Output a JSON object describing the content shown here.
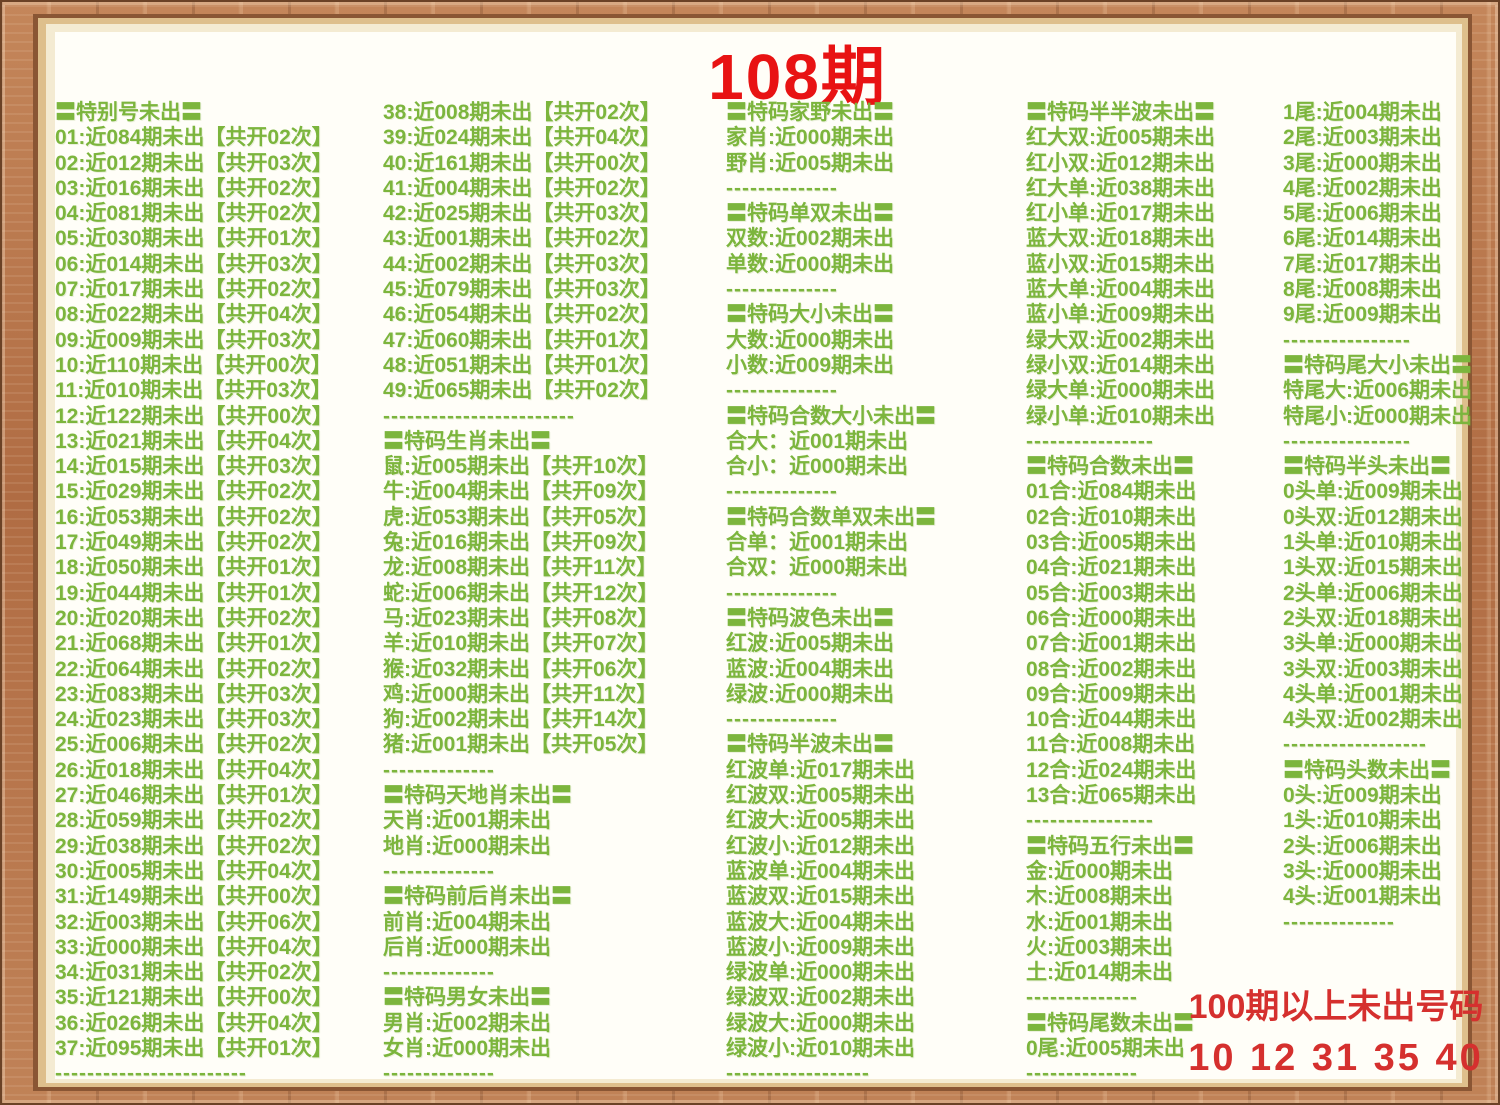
{
  "title": "108期",
  "colors": {
    "text_green": "#7cb53d",
    "title_red": "#e81313",
    "footer_red": "#d5302e"
  },
  "footer": {
    "line1": "100期以上未出号码",
    "line2": "10 12 31 35 40"
  },
  "columns": [
    {
      "name": "special-numbers",
      "lines": [
        {
          "t": "h",
          "text": "〓特别号未出〓"
        },
        {
          "t": "i",
          "text": "01:近084期未出【共开02次】"
        },
        {
          "t": "i",
          "text": "02:近012期未出【共开03次】"
        },
        {
          "t": "i",
          "text": "03:近016期未出【共开02次】"
        },
        {
          "t": "i",
          "text": "04:近081期未出【共开02次】"
        },
        {
          "t": "i",
          "text": "05:近030期未出【共开01次】"
        },
        {
          "t": "i",
          "text": "06:近014期未出【共开03次】"
        },
        {
          "t": "i",
          "text": "07:近017期未出【共开02次】"
        },
        {
          "t": "i",
          "text": "08:近022期未出【共开04次】"
        },
        {
          "t": "i",
          "text": "09:近009期未出【共开03次】"
        },
        {
          "t": "i",
          "text": "10:近110期未出【共开00次】"
        },
        {
          "t": "i",
          "text": "11:近010期未出【共开03次】"
        },
        {
          "t": "i",
          "text": "12:近122期未出【共开00次】"
        },
        {
          "t": "i",
          "text": "13:近021期未出【共开04次】"
        },
        {
          "t": "i",
          "text": "14:近015期未出【共开03次】"
        },
        {
          "t": "i",
          "text": "15:近029期未出【共开02次】"
        },
        {
          "t": "i",
          "text": "16:近053期未出【共开02次】"
        },
        {
          "t": "i",
          "text": "17:近049期未出【共开02次】"
        },
        {
          "t": "i",
          "text": "18:近050期未出【共开01次】"
        },
        {
          "t": "i",
          "text": "19:近044期未出【共开01次】"
        },
        {
          "t": "i",
          "text": "20:近020期未出【共开02次】"
        },
        {
          "t": "i",
          "text": "21:近068期未出【共开01次】"
        },
        {
          "t": "i",
          "text": "22:近064期未出【共开02次】"
        },
        {
          "t": "i",
          "text": "23:近083期未出【共开03次】"
        },
        {
          "t": "i",
          "text": "24:近023期未出【共开03次】"
        },
        {
          "t": "i",
          "text": "25:近006期未出【共开02次】"
        },
        {
          "t": "i",
          "text": "26:近018期未出【共开04次】"
        },
        {
          "t": "i",
          "text": "27:近046期未出【共开01次】"
        },
        {
          "t": "i",
          "text": "28:近059期未出【共开02次】"
        },
        {
          "t": "i",
          "text": "29:近038期未出【共开02次】"
        },
        {
          "t": "i",
          "text": "30:近005期未出【共开04次】"
        },
        {
          "t": "i",
          "text": "31:近149期未出【共开00次】"
        },
        {
          "t": "i",
          "text": "32:近003期未出【共开06次】"
        },
        {
          "t": "i",
          "text": "33:近000期未出【共开04次】"
        },
        {
          "t": "i",
          "text": "34:近031期未出【共开02次】"
        },
        {
          "t": "i",
          "text": "35:近121期未出【共开00次】"
        },
        {
          "t": "i",
          "text": "36:近026期未出【共开04次】"
        },
        {
          "t": "i",
          "text": "37:近095期未出【共开01次】"
        },
        {
          "t": "d",
          "text": "------------------------"
        }
      ]
    },
    {
      "name": "special-numbers-2-and-zodiac",
      "lines": [
        {
          "t": "i",
          "text": "38:近008期未出【共开02次】"
        },
        {
          "t": "i",
          "text": "39:近024期未出【共开04次】"
        },
        {
          "t": "i",
          "text": "40:近161期未出【共开00次】"
        },
        {
          "t": "i",
          "text": "41:近004期未出【共开02次】"
        },
        {
          "t": "i",
          "text": "42:近025期未出【共开03次】"
        },
        {
          "t": "i",
          "text": "43:近001期未出【共开02次】"
        },
        {
          "t": "i",
          "text": "44:近002期未出【共开03次】"
        },
        {
          "t": "i",
          "text": "45:近079期未出【共开03次】"
        },
        {
          "t": "i",
          "text": "46:近054期未出【共开02次】"
        },
        {
          "t": "i",
          "text": "47:近060期未出【共开01次】"
        },
        {
          "t": "i",
          "text": "48:近051期未出【共开01次】"
        },
        {
          "t": "i",
          "text": "49:近065期未出【共开02次】"
        },
        {
          "t": "d",
          "text": "------------------------"
        },
        {
          "t": "h",
          "text": "〓特码生肖未出〓"
        },
        {
          "t": "i",
          "text": "鼠:近005期未出【共开10次】"
        },
        {
          "t": "i",
          "text": "牛:近004期未出【共开09次】"
        },
        {
          "t": "i",
          "text": "虎:近053期未出【共开05次】"
        },
        {
          "t": "i",
          "text": "兔:近016期未出【共开09次】"
        },
        {
          "t": "i",
          "text": "龙:近008期未出【共开11次】"
        },
        {
          "t": "i",
          "text": "蛇:近006期未出【共开12次】"
        },
        {
          "t": "i",
          "text": "马:近023期未出【共开08次】"
        },
        {
          "t": "i",
          "text": "羊:近010期未出【共开07次】"
        },
        {
          "t": "i",
          "text": "猴:近032期未出【共开06次】"
        },
        {
          "t": "i",
          "text": "鸡:近000期未出【共开11次】"
        },
        {
          "t": "i",
          "text": "狗:近002期未出【共开14次】"
        },
        {
          "t": "i",
          "text": "猪:近001期未出【共开05次】"
        },
        {
          "t": "d",
          "text": "--------------"
        },
        {
          "t": "h",
          "text": "〓特码天地肖未出〓"
        },
        {
          "t": "i",
          "text": "天肖:近001期未出"
        },
        {
          "t": "i",
          "text": "地肖:近000期未出"
        },
        {
          "t": "d",
          "text": "--------------"
        },
        {
          "t": "h",
          "text": "〓特码前后肖未出〓"
        },
        {
          "t": "i",
          "text": "前肖:近004期未出"
        },
        {
          "t": "i",
          "text": "后肖:近000期未出"
        },
        {
          "t": "d",
          "text": "--------------"
        },
        {
          "t": "h",
          "text": "〓特码男女未出〓"
        },
        {
          "t": "i",
          "text": "男肖:近002期未出"
        },
        {
          "t": "i",
          "text": "女肖:近000期未出"
        },
        {
          "t": "d",
          "text": "--------------"
        }
      ]
    },
    {
      "name": "attributes",
      "lines": [
        {
          "t": "h",
          "text": "〓特码家野未出〓"
        },
        {
          "t": "i",
          "text": "家肖:近000期未出"
        },
        {
          "t": "i",
          "text": "野肖:近005期未出"
        },
        {
          "t": "d",
          "text": "--------------"
        },
        {
          "t": "h",
          "text": "〓特码单双未出〓"
        },
        {
          "t": "i",
          "text": "双数:近002期未出"
        },
        {
          "t": "i",
          "text": "单数:近000期未出"
        },
        {
          "t": "d",
          "text": "--------------"
        },
        {
          "t": "h",
          "text": "〓特码大小未出〓"
        },
        {
          "t": "i",
          "text": "大数:近000期未出"
        },
        {
          "t": "i",
          "text": "小数:近009期未出"
        },
        {
          "t": "d",
          "text": "--------------"
        },
        {
          "t": "h",
          "text": "〓特码合数大小未出〓"
        },
        {
          "t": "i",
          "text": "合大：近001期未出"
        },
        {
          "t": "i",
          "text": "合小：近000期未出"
        },
        {
          "t": "d",
          "text": "--------------"
        },
        {
          "t": "h",
          "text": "〓特码合数单双未出〓"
        },
        {
          "t": "i",
          "text": "合单：近001期未出"
        },
        {
          "t": "i",
          "text": "合双：近000期未出"
        },
        {
          "t": "d",
          "text": "--------------"
        },
        {
          "t": "h",
          "text": "〓特码波色未出〓"
        },
        {
          "t": "i",
          "text": "红波:近005期未出"
        },
        {
          "t": "i",
          "text": "蓝波:近004期未出"
        },
        {
          "t": "i",
          "text": "绿波:近000期未出"
        },
        {
          "t": "d",
          "text": "--------------"
        },
        {
          "t": "h",
          "text": "〓特码半波未出〓"
        },
        {
          "t": "i",
          "text": "红波单:近017期未出"
        },
        {
          "t": "i",
          "text": "红波双:近005期未出"
        },
        {
          "t": "i",
          "text": "红波大:近005期未出"
        },
        {
          "t": "i",
          "text": "红波小:近012期未出"
        },
        {
          "t": "i",
          "text": "蓝波单:近004期未出"
        },
        {
          "t": "i",
          "text": "蓝波双:近015期未出"
        },
        {
          "t": "i",
          "text": "蓝波大:近004期未出"
        },
        {
          "t": "i",
          "text": "蓝波小:近009期未出"
        },
        {
          "t": "i",
          "text": "绿波单:近000期未出"
        },
        {
          "t": "i",
          "text": "绿波双:近002期未出"
        },
        {
          "t": "i",
          "text": "绿波大:近000期未出"
        },
        {
          "t": "i",
          "text": "绿波小:近010期未出"
        },
        {
          "t": "d",
          "text": "------------------"
        }
      ]
    },
    {
      "name": "half-half-wave-and-sums",
      "lines": [
        {
          "t": "h",
          "text": "〓特码半半波未出〓"
        },
        {
          "t": "i",
          "text": "红大双:近005期未出"
        },
        {
          "t": "i",
          "text": "红小双:近012期未出"
        },
        {
          "t": "i",
          "text": "红大单:近038期未出"
        },
        {
          "t": "i",
          "text": "红小单:近017期未出"
        },
        {
          "t": "i",
          "text": "蓝大双:近018期未出"
        },
        {
          "t": "i",
          "text": "蓝小双:近015期未出"
        },
        {
          "t": "i",
          "text": "蓝大单:近004期未出"
        },
        {
          "t": "i",
          "text": "蓝小单:近009期未出"
        },
        {
          "t": "i",
          "text": "绿大双:近002期未出"
        },
        {
          "t": "i",
          "text": "绿小双:近014期未出"
        },
        {
          "t": "i",
          "text": "绿大单:近000期未出"
        },
        {
          "t": "i",
          "text": "绿小单:近010期未出"
        },
        {
          "t": "d",
          "text": "----------------"
        },
        {
          "t": "h",
          "text": "〓特码合数未出〓"
        },
        {
          "t": "i",
          "text": "01合:近084期未出"
        },
        {
          "t": "i",
          "text": "02合:近010期未出"
        },
        {
          "t": "i",
          "text": "03合:近005期未出"
        },
        {
          "t": "i",
          "text": "04合:近021期未出"
        },
        {
          "t": "i",
          "text": "05合:近003期未出"
        },
        {
          "t": "i",
          "text": "06合:近000期未出"
        },
        {
          "t": "i",
          "text": "07合:近001期未出"
        },
        {
          "t": "i",
          "text": "08合:近002期未出"
        },
        {
          "t": "i",
          "text": "09合:近009期未出"
        },
        {
          "t": "i",
          "text": "10合:近044期未出"
        },
        {
          "t": "i",
          "text": "11合:近008期未出"
        },
        {
          "t": "i",
          "text": "12合:近024期未出"
        },
        {
          "t": "i",
          "text": "13合:近065期未出"
        },
        {
          "t": "d",
          "text": "----------------"
        },
        {
          "t": "h",
          "text": "〓特码五行未出〓"
        },
        {
          "t": "i",
          "text": "金:近000期未出"
        },
        {
          "t": "i",
          "text": "木:近008期未出"
        },
        {
          "t": "i",
          "text": "水:近001期未出"
        },
        {
          "t": "i",
          "text": "火:近003期未出"
        },
        {
          "t": "i",
          "text": "土:近014期未出"
        },
        {
          "t": "d",
          "text": "--------------"
        },
        {
          "t": "h",
          "text": "〓特码尾数未出〓"
        },
        {
          "t": "i",
          "text": "0尾:近005期未出"
        },
        {
          "t": "d",
          "text": "--------------"
        }
      ]
    },
    {
      "name": "tails-and-heads",
      "lines": [
        {
          "t": "i",
          "text": "1尾:近004期未出"
        },
        {
          "t": "i",
          "text": "2尾:近003期未出"
        },
        {
          "t": "i",
          "text": "3尾:近000期未出"
        },
        {
          "t": "i",
          "text": "4尾:近002期未出"
        },
        {
          "t": "i",
          "text": "5尾:近006期未出"
        },
        {
          "t": "i",
          "text": "6尾:近014期未出"
        },
        {
          "t": "i",
          "text": "7尾:近017期未出"
        },
        {
          "t": "i",
          "text": "8尾:近008期未出"
        },
        {
          "t": "i",
          "text": "9尾:近009期未出"
        },
        {
          "t": "d",
          "text": "----------------"
        },
        {
          "t": "h",
          "text": "〓特码尾大小未出〓"
        },
        {
          "t": "i",
          "text": "特尾大:近006期未出"
        },
        {
          "t": "i",
          "text": "特尾小:近000期未出"
        },
        {
          "t": "d",
          "text": "----------------"
        },
        {
          "t": "h",
          "text": "〓特码半头未出〓"
        },
        {
          "t": "i",
          "text": "0头单:近009期未出"
        },
        {
          "t": "i",
          "text": "0头双:近012期未出"
        },
        {
          "t": "i",
          "text": "1头单:近010期未出"
        },
        {
          "t": "i",
          "text": "1头双:近015期未出"
        },
        {
          "t": "i",
          "text": "2头单:近006期未出"
        },
        {
          "t": "i",
          "text": "2头双:近018期未出"
        },
        {
          "t": "i",
          "text": "3头单:近000期未出"
        },
        {
          "t": "i",
          "text": "3头双:近003期未出"
        },
        {
          "t": "i",
          "text": "4头单:近001期未出"
        },
        {
          "t": "i",
          "text": "4头双:近002期未出"
        },
        {
          "t": "d",
          "text": "------------------"
        },
        {
          "t": "h",
          "text": "〓特码头数未出〓"
        },
        {
          "t": "i",
          "text": "0头:近009期未出"
        },
        {
          "t": "i",
          "text": "1头:近010期未出"
        },
        {
          "t": "i",
          "text": "2头:近006期未出"
        },
        {
          "t": "i",
          "text": "3头:近000期未出"
        },
        {
          "t": "i",
          "text": "4头:近001期未出"
        },
        {
          "t": "d",
          "text": "--------------"
        }
      ]
    }
  ]
}
